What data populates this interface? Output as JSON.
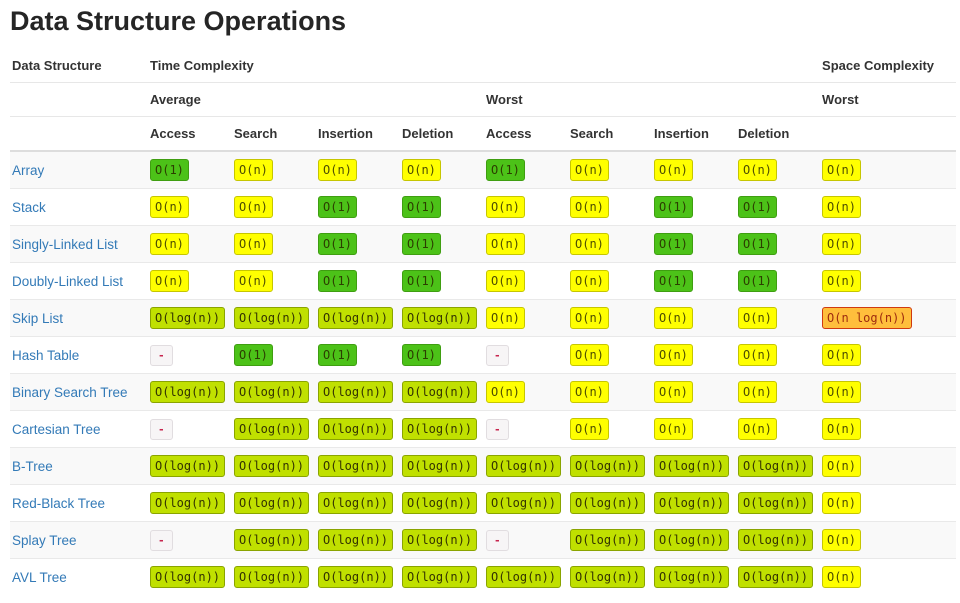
{
  "page": {
    "title": "Data Structure Operations",
    "background": "#ffffff",
    "link_color": "#337ab7"
  },
  "table": {
    "head": {
      "col0": "Data Structure",
      "time": "Time Complexity",
      "space": "Space Complexity",
      "avg": "Average",
      "worst": "Worst",
      "space_worst": "Worst",
      "ops": [
        "Access",
        "Search",
        "Insertion",
        "Deletion"
      ]
    },
    "levels": {
      "excellent": {
        "bg": "#4cc218",
        "border": "#3f9e11",
        "text": "#2c3e00"
      },
      "good": {
        "bg": "#c0e000",
        "border": "#8aa400",
        "text": "#333300"
      },
      "fair": {
        "bg": "#ffff00",
        "border": "#c6c600",
        "text": "#4d4d00"
      },
      "bad": {
        "bg": "#ffbe3c",
        "border": "#cf3a10",
        "text": "#9e2b0e"
      },
      "na": {
        "bg": "#f7f5f6",
        "border": "#e1dde0",
        "text": "#c7254e"
      }
    },
    "rows": [
      {
        "name": "Array",
        "avg": [
          {
            "text": "O(1)",
            "level": "excellent"
          },
          {
            "text": "O(n)",
            "level": "fair"
          },
          {
            "text": "O(n)",
            "level": "fair"
          },
          {
            "text": "O(n)",
            "level": "fair"
          }
        ],
        "worst": [
          {
            "text": "O(1)",
            "level": "excellent"
          },
          {
            "text": "O(n)",
            "level": "fair"
          },
          {
            "text": "O(n)",
            "level": "fair"
          },
          {
            "text": "O(n)",
            "level": "fair"
          }
        ],
        "space": {
          "text": "O(n)",
          "level": "fair"
        }
      },
      {
        "name": "Stack",
        "avg": [
          {
            "text": "O(n)",
            "level": "fair"
          },
          {
            "text": "O(n)",
            "level": "fair"
          },
          {
            "text": "O(1)",
            "level": "excellent"
          },
          {
            "text": "O(1)",
            "level": "excellent"
          }
        ],
        "worst": [
          {
            "text": "O(n)",
            "level": "fair"
          },
          {
            "text": "O(n)",
            "level": "fair"
          },
          {
            "text": "O(1)",
            "level": "excellent"
          },
          {
            "text": "O(1)",
            "level": "excellent"
          }
        ],
        "space": {
          "text": "O(n)",
          "level": "fair"
        }
      },
      {
        "name": "Singly-Linked List",
        "avg": [
          {
            "text": "O(n)",
            "level": "fair"
          },
          {
            "text": "O(n)",
            "level": "fair"
          },
          {
            "text": "O(1)",
            "level": "excellent"
          },
          {
            "text": "O(1)",
            "level": "excellent"
          }
        ],
        "worst": [
          {
            "text": "O(n)",
            "level": "fair"
          },
          {
            "text": "O(n)",
            "level": "fair"
          },
          {
            "text": "O(1)",
            "level": "excellent"
          },
          {
            "text": "O(1)",
            "level": "excellent"
          }
        ],
        "space": {
          "text": "O(n)",
          "level": "fair"
        }
      },
      {
        "name": "Doubly-Linked List",
        "avg": [
          {
            "text": "O(n)",
            "level": "fair"
          },
          {
            "text": "O(n)",
            "level": "fair"
          },
          {
            "text": "O(1)",
            "level": "excellent"
          },
          {
            "text": "O(1)",
            "level": "excellent"
          }
        ],
        "worst": [
          {
            "text": "O(n)",
            "level": "fair"
          },
          {
            "text": "O(n)",
            "level": "fair"
          },
          {
            "text": "O(1)",
            "level": "excellent"
          },
          {
            "text": "O(1)",
            "level": "excellent"
          }
        ],
        "space": {
          "text": "O(n)",
          "level": "fair"
        }
      },
      {
        "name": "Skip List",
        "avg": [
          {
            "text": "O(log(n))",
            "level": "good"
          },
          {
            "text": "O(log(n))",
            "level": "good"
          },
          {
            "text": "O(log(n))",
            "level": "good"
          },
          {
            "text": "O(log(n))",
            "level": "good"
          }
        ],
        "worst": [
          {
            "text": "O(n)",
            "level": "fair"
          },
          {
            "text": "O(n)",
            "level": "fair"
          },
          {
            "text": "O(n)",
            "level": "fair"
          },
          {
            "text": "O(n)",
            "level": "fair"
          }
        ],
        "space": {
          "text": "O(n log(n))",
          "level": "bad"
        }
      },
      {
        "name": "Hash Table",
        "avg": [
          {
            "text": "-",
            "level": "na"
          },
          {
            "text": "O(1)",
            "level": "excellent"
          },
          {
            "text": "O(1)",
            "level": "excellent"
          },
          {
            "text": "O(1)",
            "level": "excellent"
          }
        ],
        "worst": [
          {
            "text": "-",
            "level": "na"
          },
          {
            "text": "O(n)",
            "level": "fair"
          },
          {
            "text": "O(n)",
            "level": "fair"
          },
          {
            "text": "O(n)",
            "level": "fair"
          }
        ],
        "space": {
          "text": "O(n)",
          "level": "fair"
        }
      },
      {
        "name": "Binary Search Tree",
        "avg": [
          {
            "text": "O(log(n))",
            "level": "good"
          },
          {
            "text": "O(log(n))",
            "level": "good"
          },
          {
            "text": "O(log(n))",
            "level": "good"
          },
          {
            "text": "O(log(n))",
            "level": "good"
          }
        ],
        "worst": [
          {
            "text": "O(n)",
            "level": "fair"
          },
          {
            "text": "O(n)",
            "level": "fair"
          },
          {
            "text": "O(n)",
            "level": "fair"
          },
          {
            "text": "O(n)",
            "level": "fair"
          }
        ],
        "space": {
          "text": "O(n)",
          "level": "fair"
        }
      },
      {
        "name": "Cartesian Tree",
        "avg": [
          {
            "text": "-",
            "level": "na"
          },
          {
            "text": "O(log(n))",
            "level": "good"
          },
          {
            "text": "O(log(n))",
            "level": "good"
          },
          {
            "text": "O(log(n))",
            "level": "good"
          }
        ],
        "worst": [
          {
            "text": "-",
            "level": "na"
          },
          {
            "text": "O(n)",
            "level": "fair"
          },
          {
            "text": "O(n)",
            "level": "fair"
          },
          {
            "text": "O(n)",
            "level": "fair"
          }
        ],
        "space": {
          "text": "O(n)",
          "level": "fair"
        }
      },
      {
        "name": "B-Tree",
        "avg": [
          {
            "text": "O(log(n))",
            "level": "good"
          },
          {
            "text": "O(log(n))",
            "level": "good"
          },
          {
            "text": "O(log(n))",
            "level": "good"
          },
          {
            "text": "O(log(n))",
            "level": "good"
          }
        ],
        "worst": [
          {
            "text": "O(log(n))",
            "level": "good"
          },
          {
            "text": "O(log(n))",
            "level": "good"
          },
          {
            "text": "O(log(n))",
            "level": "good"
          },
          {
            "text": "O(log(n))",
            "level": "good"
          }
        ],
        "space": {
          "text": "O(n)",
          "level": "fair"
        }
      },
      {
        "name": "Red-Black Tree",
        "avg": [
          {
            "text": "O(log(n))",
            "level": "good"
          },
          {
            "text": "O(log(n))",
            "level": "good"
          },
          {
            "text": "O(log(n))",
            "level": "good"
          },
          {
            "text": "O(log(n))",
            "level": "good"
          }
        ],
        "worst": [
          {
            "text": "O(log(n))",
            "level": "good"
          },
          {
            "text": "O(log(n))",
            "level": "good"
          },
          {
            "text": "O(log(n))",
            "level": "good"
          },
          {
            "text": "O(log(n))",
            "level": "good"
          }
        ],
        "space": {
          "text": "O(n)",
          "level": "fair"
        }
      },
      {
        "name": "Splay Tree",
        "avg": [
          {
            "text": "-",
            "level": "na"
          },
          {
            "text": "O(log(n))",
            "level": "good"
          },
          {
            "text": "O(log(n))",
            "level": "good"
          },
          {
            "text": "O(log(n))",
            "level": "good"
          }
        ],
        "worst": [
          {
            "text": "-",
            "level": "na"
          },
          {
            "text": "O(log(n))",
            "level": "good"
          },
          {
            "text": "O(log(n))",
            "level": "good"
          },
          {
            "text": "O(log(n))",
            "level": "good"
          }
        ],
        "space": {
          "text": "O(n)",
          "level": "fair"
        }
      },
      {
        "name": "AVL Tree",
        "avg": [
          {
            "text": "O(log(n))",
            "level": "good"
          },
          {
            "text": "O(log(n))",
            "level": "good"
          },
          {
            "text": "O(log(n))",
            "level": "good"
          },
          {
            "text": "O(log(n))",
            "level": "good"
          }
        ],
        "worst": [
          {
            "text": "O(log(n))",
            "level": "good"
          },
          {
            "text": "O(log(n))",
            "level": "good"
          },
          {
            "text": "O(log(n))",
            "level": "good"
          },
          {
            "text": "O(log(n))",
            "level": "good"
          }
        ],
        "space": {
          "text": "O(n)",
          "level": "fair"
        }
      }
    ]
  }
}
